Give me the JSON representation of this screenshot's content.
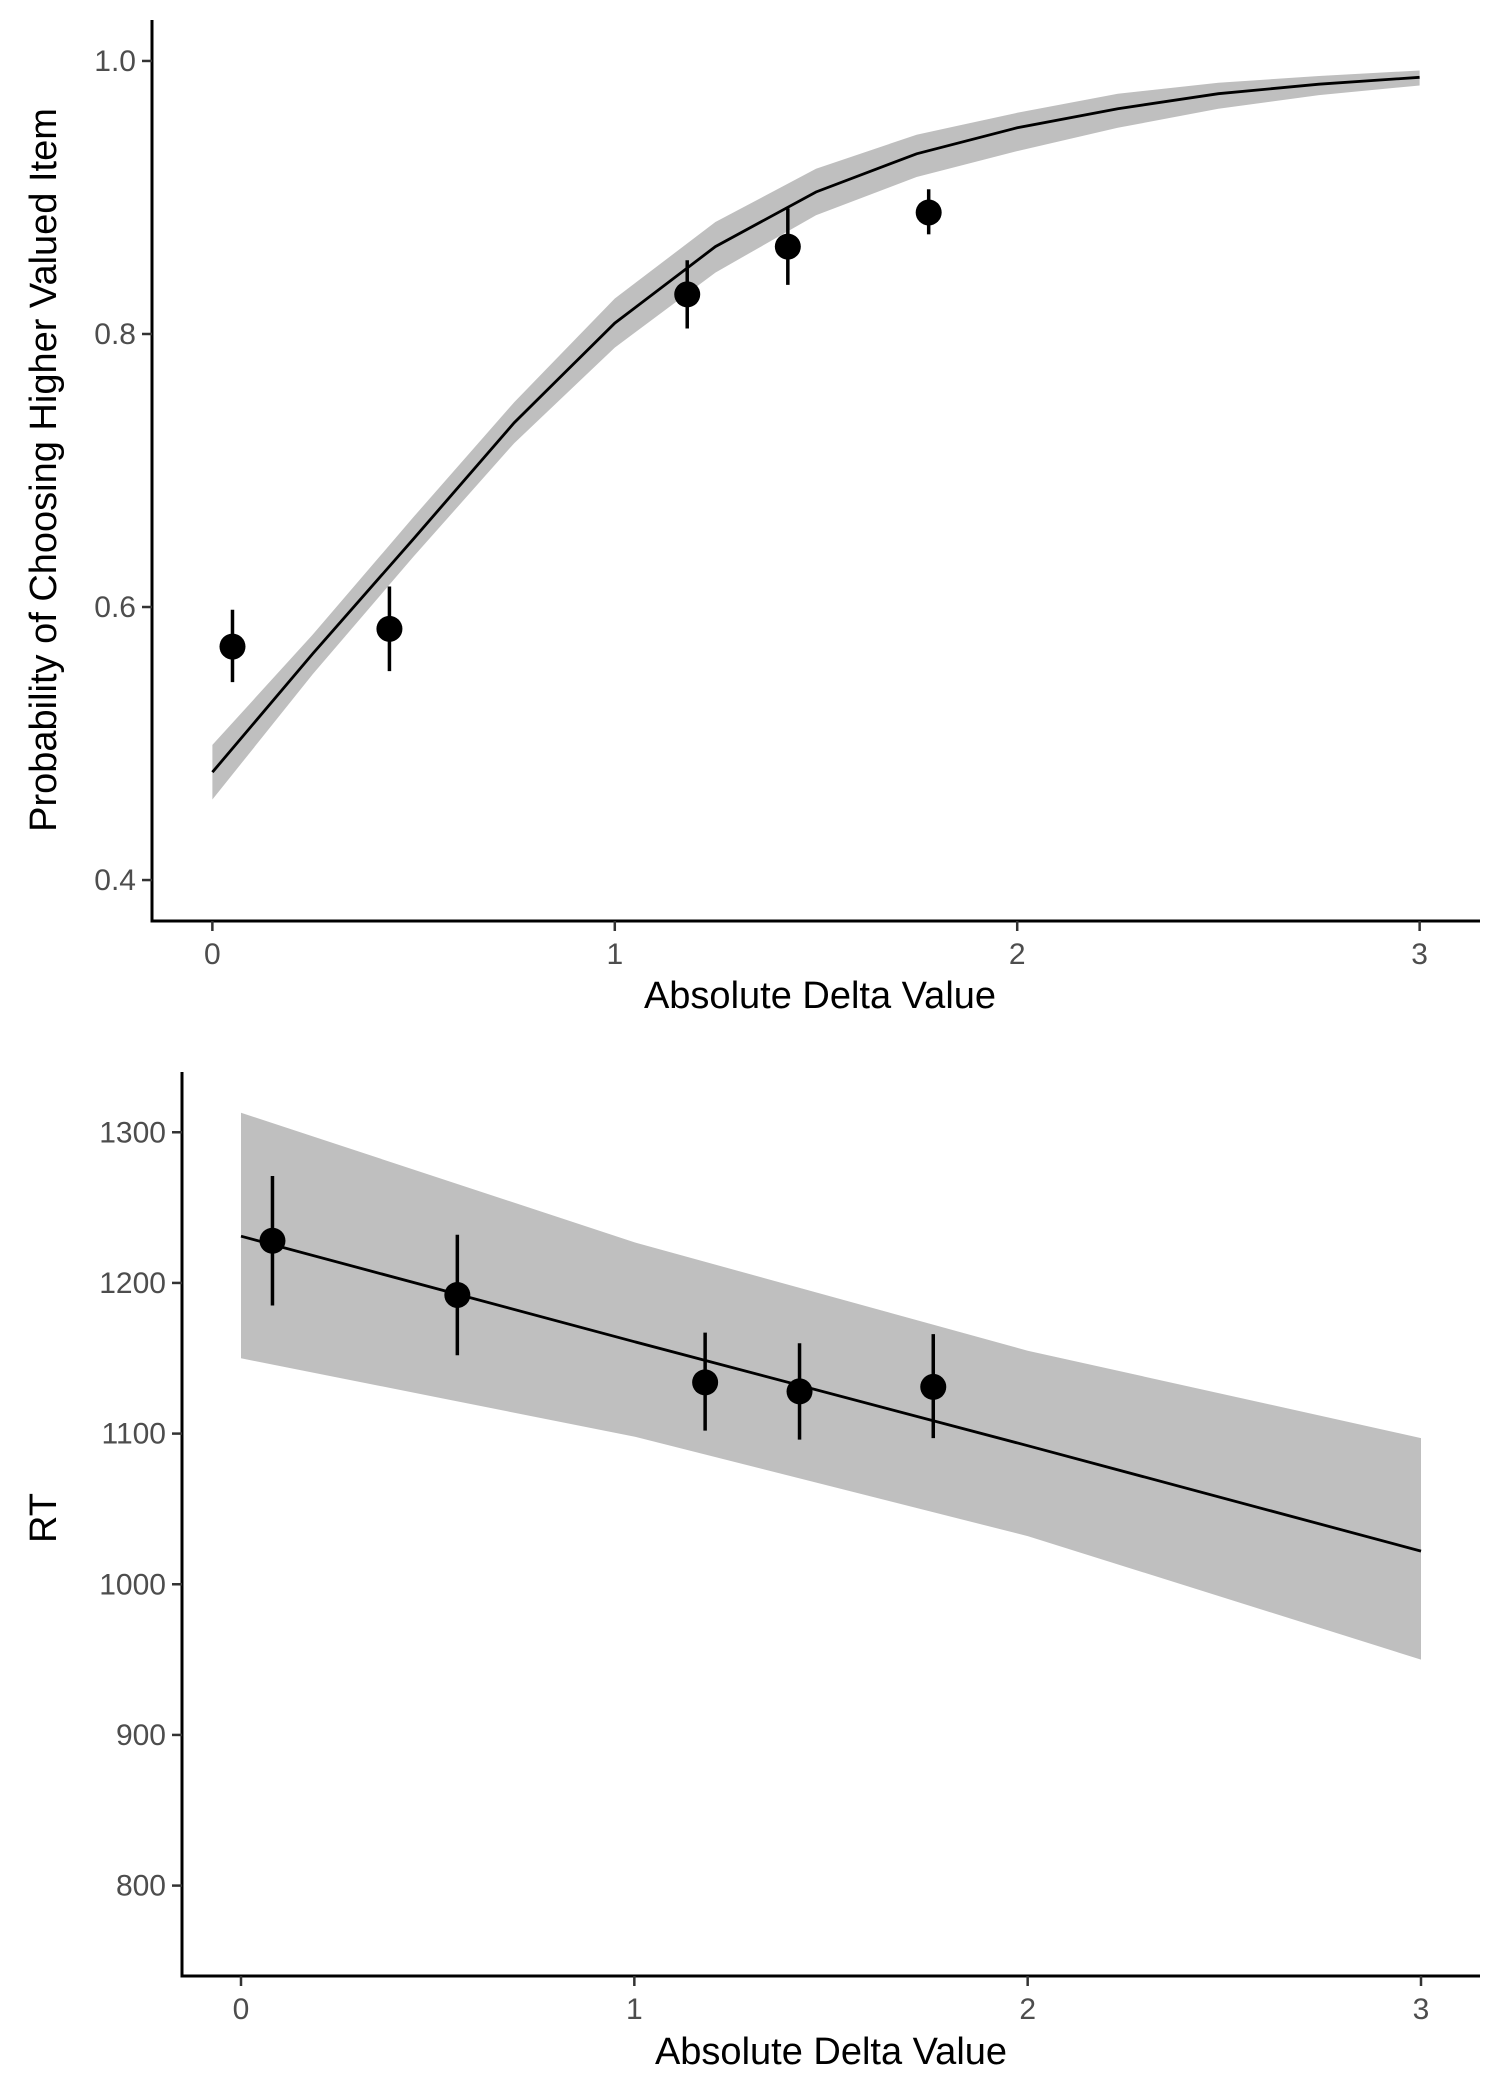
{
  "chart_data": [
    {
      "type": "line",
      "title": "",
      "xlabel": "Absolute Delta Value",
      "ylabel": "Probability of Choosing Higher Valued Item",
      "xlim": [
        -0.15,
        3.15
      ],
      "ylim": [
        0.37,
        1.03
      ],
      "x_ticks": [
        "0",
        "1",
        "2",
        "3"
      ],
      "y_ticks": [
        "0.4",
        "0.6",
        "0.8",
        "1.0"
      ],
      "x_tick_values": [
        0,
        1,
        2,
        3
      ],
      "y_tick_values": [
        0.4,
        0.6,
        0.8,
        1.0
      ],
      "grid": false,
      "legend": "none",
      "fit": {
        "kind": "logistic",
        "x": [
          0.0,
          0.25,
          0.5,
          0.75,
          1.0,
          1.25,
          1.5,
          1.75,
          2.0,
          2.25,
          2.5,
          2.75,
          3.0
        ],
        "y": [
          0.479,
          0.566,
          0.65,
          0.735,
          0.808,
          0.864,
          0.904,
          0.932,
          0.951,
          0.965,
          0.976,
          0.983,
          0.988
        ],
        "lower": [
          0.459,
          0.551,
          0.637,
          0.72,
          0.79,
          0.845,
          0.887,
          0.915,
          0.934,
          0.951,
          0.965,
          0.975,
          0.982
        ],
        "upper": [
          0.499,
          0.58,
          0.666,
          0.75,
          0.826,
          0.882,
          0.921,
          0.946,
          0.962,
          0.976,
          0.984,
          0.989,
          0.993
        ]
      },
      "points": [
        {
          "x": 0.05,
          "y": 0.571,
          "ymin": 0.545,
          "ymax": 0.598
        },
        {
          "x": 0.44,
          "y": 0.584,
          "ymin": 0.553,
          "ymax": 0.615
        },
        {
          "x": 1.18,
          "y": 0.829,
          "ymin": 0.804,
          "ymax": 0.854
        },
        {
          "x": 1.43,
          "y": 0.864,
          "ymin": 0.836,
          "ymax": 0.892
        },
        {
          "x": 1.78,
          "y": 0.889,
          "ymin": 0.873,
          "ymax": 0.906
        }
      ],
      "colors": {
        "line": "#000000",
        "ribbon": "#bfbfbf",
        "points": "#000000"
      }
    },
    {
      "type": "line",
      "title": "",
      "xlabel": "Absolute Delta Value",
      "ylabel": "RT",
      "xlim": [
        -0.15,
        3.15
      ],
      "ylim": [
        740,
        1340
      ],
      "x_ticks": [
        "0",
        "1",
        "2",
        "3"
      ],
      "y_ticks": [
        "800",
        "900",
        "1000",
        "1100",
        "1200",
        "1300"
      ],
      "x_tick_values": [
        0,
        1,
        2,
        3
      ],
      "y_tick_values": [
        800,
        900,
        1000,
        1100,
        1200,
        1300
      ],
      "grid": false,
      "legend": "none",
      "fit": {
        "kind": "linear",
        "x": [
          0,
          1,
          2,
          3
        ],
        "y": [
          1231,
          1161,
          1092,
          1022
        ],
        "lower": [
          1150,
          1098,
          1032,
          950
        ],
        "upper": [
          1313,
          1227,
          1155,
          1097
        ]
      },
      "points": [
        {
          "x": 0.08,
          "y": 1228,
          "ymin": 1185,
          "ymax": 1271
        },
        {
          "x": 0.55,
          "y": 1192,
          "ymin": 1152,
          "ymax": 1232
        },
        {
          "x": 1.18,
          "y": 1134,
          "ymin": 1102,
          "ymax": 1167
        },
        {
          "x": 1.42,
          "y": 1128,
          "ymin": 1096,
          "ymax": 1160
        },
        {
          "x": 1.76,
          "y": 1131,
          "ymin": 1097,
          "ymax": 1166
        }
      ],
      "colors": {
        "line": "#000000",
        "ribbon": "#bfbfbf",
        "points": "#000000"
      }
    }
  ]
}
